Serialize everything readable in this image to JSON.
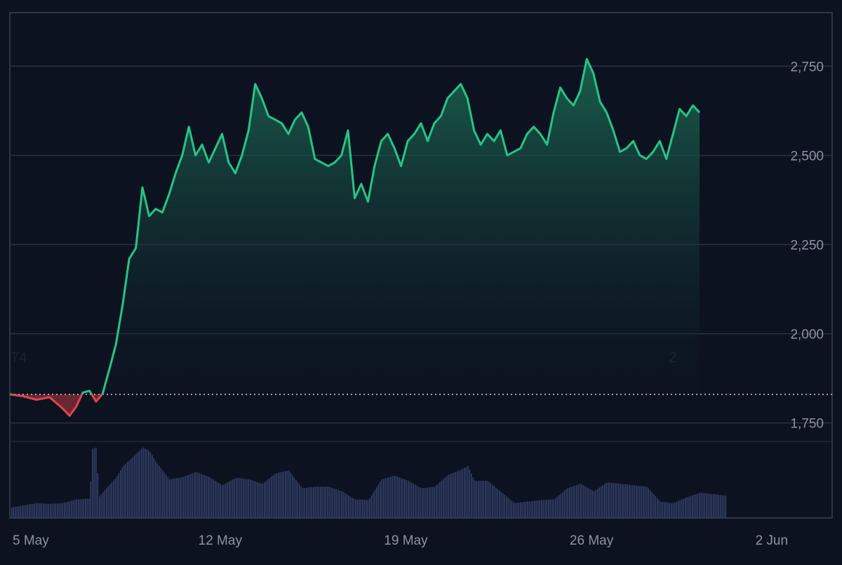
{
  "colors": {
    "background": "#0c1220",
    "grid": "#2a3140",
    "frame": "#3a4150",
    "line_up": "#22c686",
    "line_down": "#e2434b",
    "fill_up_top": "#1f7a5c",
    "volume": "#33406a",
    "baseline": "#c9ced8",
    "tick_text": "#8b93a5"
  },
  "markers": {
    "left": "74",
    "right": "2"
  },
  "chart_data": {
    "type": "area",
    "title": "",
    "xlabel": "",
    "ylabel": "",
    "baseline": 1830,
    "ylim": [
      1700,
      2900
    ],
    "yticks": [
      1750,
      2000,
      2250,
      2500,
      2750
    ],
    "ytick_labels": [
      "1,750",
      "2,000",
      "2,250",
      "2,500",
      "2,750"
    ],
    "xlim": [
      "2025-05-05",
      "2025-06-05"
    ],
    "xticks": [
      "2025-05-05",
      "2025-05-12",
      "2025-05-19",
      "2025-05-26",
      "2025-06-02"
    ],
    "xtick_labels": [
      "5 May",
      "12 May",
      "19 May",
      "26 May",
      "2 Jun"
    ],
    "series": [
      {
        "values": [
          [
            "2025-05-05",
            1830
          ],
          [
            "2025-05-05T12:00",
            1825
          ],
          [
            "2025-05-06",
            1815
          ],
          [
            "2025-05-06T12:00",
            1822
          ],
          [
            "2025-05-07",
            1790
          ],
          [
            "2025-05-07T06:00",
            1770
          ],
          [
            "2025-05-07T12:00",
            1795
          ],
          [
            "2025-05-07T18:00",
            1835
          ],
          [
            "2025-05-08",
            1840
          ],
          [
            "2025-05-08T06:00",
            1810
          ],
          [
            "2025-05-08T12:00",
            1832
          ],
          [
            "2025-05-08T18:00",
            1900
          ],
          [
            "2025-05-09",
            1970
          ],
          [
            "2025-05-09T06:00",
            2080
          ],
          [
            "2025-05-09T12:00",
            2210
          ],
          [
            "2025-05-09T18:00",
            2240
          ],
          [
            "2025-05-10",
            2410
          ],
          [
            "2025-05-10T06:00",
            2330
          ],
          [
            "2025-05-10T12:00",
            2350
          ],
          [
            "2025-05-10T18:00",
            2340
          ],
          [
            "2025-05-11",
            2390
          ],
          [
            "2025-05-11T06:00",
            2450
          ],
          [
            "2025-05-11T12:00",
            2500
          ],
          [
            "2025-05-11T18:00",
            2580
          ],
          [
            "2025-05-12",
            2500
          ],
          [
            "2025-05-12T06:00",
            2530
          ],
          [
            "2025-05-12T12:00",
            2480
          ],
          [
            "2025-05-12T18:00",
            2520
          ],
          [
            "2025-05-13",
            2560
          ],
          [
            "2025-05-13T06:00",
            2480
          ],
          [
            "2025-05-13T12:00",
            2450
          ],
          [
            "2025-05-13T18:00",
            2500
          ],
          [
            "2025-05-14",
            2570
          ],
          [
            "2025-05-14T06:00",
            2700
          ],
          [
            "2025-05-14T12:00",
            2660
          ],
          [
            "2025-05-14T18:00",
            2610
          ],
          [
            "2025-05-15",
            2600
          ],
          [
            "2025-05-15T06:00",
            2590
          ],
          [
            "2025-05-15T12:00",
            2560
          ],
          [
            "2025-05-15T18:00",
            2600
          ],
          [
            "2025-05-16",
            2620
          ],
          [
            "2025-05-16T06:00",
            2580
          ],
          [
            "2025-05-16T12:00",
            2490
          ],
          [
            "2025-05-16T18:00",
            2480
          ],
          [
            "2025-05-17",
            2470
          ],
          [
            "2025-05-17T06:00",
            2480
          ],
          [
            "2025-05-17T12:00",
            2500
          ],
          [
            "2025-05-17T18:00",
            2570
          ],
          [
            "2025-05-18",
            2380
          ],
          [
            "2025-05-18T06:00",
            2420
          ],
          [
            "2025-05-18T12:00",
            2370
          ],
          [
            "2025-05-18T18:00",
            2470
          ],
          [
            "2025-05-19",
            2540
          ],
          [
            "2025-05-19T06:00",
            2560
          ],
          [
            "2025-05-19T12:00",
            2520
          ],
          [
            "2025-05-19T18:00",
            2470
          ],
          [
            "2025-05-20",
            2540
          ],
          [
            "2025-05-20T06:00",
            2560
          ],
          [
            "2025-05-20T12:00",
            2590
          ],
          [
            "2025-05-20T18:00",
            2540
          ],
          [
            "2025-05-21",
            2590
          ],
          [
            "2025-05-21T06:00",
            2610
          ],
          [
            "2025-05-21T12:00",
            2660
          ],
          [
            "2025-05-21T18:00",
            2680
          ],
          [
            "2025-05-22",
            2700
          ],
          [
            "2025-05-22T06:00",
            2660
          ],
          [
            "2025-05-22T12:00",
            2570
          ],
          [
            "2025-05-22T18:00",
            2530
          ],
          [
            "2025-05-23",
            2560
          ],
          [
            "2025-05-23T06:00",
            2540
          ],
          [
            "2025-05-23T12:00",
            2570
          ],
          [
            "2025-05-23T18:00",
            2500
          ],
          [
            "2025-05-24",
            2510
          ],
          [
            "2025-05-24T06:00",
            2520
          ],
          [
            "2025-05-24T12:00",
            2560
          ],
          [
            "2025-05-24T18:00",
            2580
          ],
          [
            "2025-05-25",
            2560
          ],
          [
            "2025-05-25T06:00",
            2530
          ],
          [
            "2025-05-25T12:00",
            2620
          ],
          [
            "2025-05-25T18:00",
            2690
          ],
          [
            "2025-05-26",
            2660
          ],
          [
            "2025-05-26T06:00",
            2640
          ],
          [
            "2025-05-26T12:00",
            2680
          ],
          [
            "2025-05-26T18:00",
            2770
          ],
          [
            "2025-05-27",
            2730
          ],
          [
            "2025-05-27T06:00",
            2650
          ],
          [
            "2025-05-27T12:00",
            2620
          ],
          [
            "2025-05-27T18:00",
            2570
          ],
          [
            "2025-05-28",
            2510
          ],
          [
            "2025-05-28T06:00",
            2520
          ],
          [
            "2025-05-28T12:00",
            2540
          ],
          [
            "2025-05-28T18:00",
            2500
          ],
          [
            "2025-05-29",
            2490
          ],
          [
            "2025-05-29T06:00",
            2510
          ],
          [
            "2025-05-29T12:00",
            2540
          ],
          [
            "2025-05-29T18:00",
            2490
          ],
          [
            "2025-05-30",
            2560
          ],
          [
            "2025-05-30T06:00",
            2630
          ],
          [
            "2025-05-30T12:00",
            2610
          ],
          [
            "2025-05-30T18:00",
            2640
          ],
          [
            "2025-05-31",
            2620
          ]
        ]
      }
    ],
    "volume": [
      [
        "2025-05-05",
        0.14
      ],
      [
        "2025-05-05T12:00",
        0.17
      ],
      [
        "2025-05-06",
        0.2
      ],
      [
        "2025-05-06T12:00",
        0.19
      ],
      [
        "2025-05-07",
        0.2
      ],
      [
        "2025-05-07T12:00",
        0.25
      ],
      [
        "2025-05-08",
        0.26
      ],
      [
        "2025-05-08T02:00",
        0.93
      ],
      [
        "2025-05-08T06:00",
        0.95
      ],
      [
        "2025-05-08T08:00",
        0.28
      ],
      [
        "2025-05-08T12:00",
        0.35
      ],
      [
        "2025-05-09",
        0.55
      ],
      [
        "2025-05-09T06:00",
        0.7
      ],
      [
        "2025-05-09T12:00",
        0.78
      ],
      [
        "2025-05-10",
        0.95
      ],
      [
        "2025-05-10T06:00",
        0.9
      ],
      [
        "2025-05-10T12:00",
        0.75
      ],
      [
        "2025-05-11",
        0.52
      ],
      [
        "2025-05-11T12:00",
        0.55
      ],
      [
        "2025-05-12",
        0.62
      ],
      [
        "2025-05-12T12:00",
        0.55
      ],
      [
        "2025-05-13",
        0.44
      ],
      [
        "2025-05-13T12:00",
        0.54
      ],
      [
        "2025-05-14",
        0.52
      ],
      [
        "2025-05-14T12:00",
        0.46
      ],
      [
        "2025-05-15",
        0.6
      ],
      [
        "2025-05-15T12:00",
        0.64
      ],
      [
        "2025-05-16",
        0.4
      ],
      [
        "2025-05-16T12:00",
        0.42
      ],
      [
        "2025-05-17",
        0.42
      ],
      [
        "2025-05-17T12:00",
        0.36
      ],
      [
        "2025-05-18",
        0.25
      ],
      [
        "2025-05-18T12:00",
        0.24
      ],
      [
        "2025-05-19",
        0.52
      ],
      [
        "2025-05-19T12:00",
        0.57
      ],
      [
        "2025-05-20",
        0.5
      ],
      [
        "2025-05-20T12:00",
        0.4
      ],
      [
        "2025-05-21",
        0.42
      ],
      [
        "2025-05-21T12:00",
        0.58
      ],
      [
        "2025-05-22",
        0.65
      ],
      [
        "2025-05-22T06:00",
        0.7
      ],
      [
        "2025-05-22T12:00",
        0.5
      ],
      [
        "2025-05-23",
        0.5
      ],
      [
        "2025-05-23T12:00",
        0.35
      ],
      [
        "2025-05-24",
        0.2
      ],
      [
        "2025-05-24T12:00",
        0.22
      ],
      [
        "2025-05-25",
        0.24
      ],
      [
        "2025-05-25T12:00",
        0.25
      ],
      [
        "2025-05-26",
        0.4
      ],
      [
        "2025-05-26T12:00",
        0.46
      ],
      [
        "2025-05-27",
        0.36
      ],
      [
        "2025-05-27T12:00",
        0.48
      ],
      [
        "2025-05-28",
        0.46
      ],
      [
        "2025-05-28T12:00",
        0.44
      ],
      [
        "2025-05-29",
        0.42
      ],
      [
        "2025-05-29T12:00",
        0.22
      ],
      [
        "2025-05-30",
        0.2
      ],
      [
        "2025-05-30T12:00",
        0.28
      ],
      [
        "2025-05-31",
        0.34
      ],
      [
        "2025-05-31T12:00",
        0.32
      ],
      [
        "2025-06-01",
        0.3
      ]
    ]
  }
}
